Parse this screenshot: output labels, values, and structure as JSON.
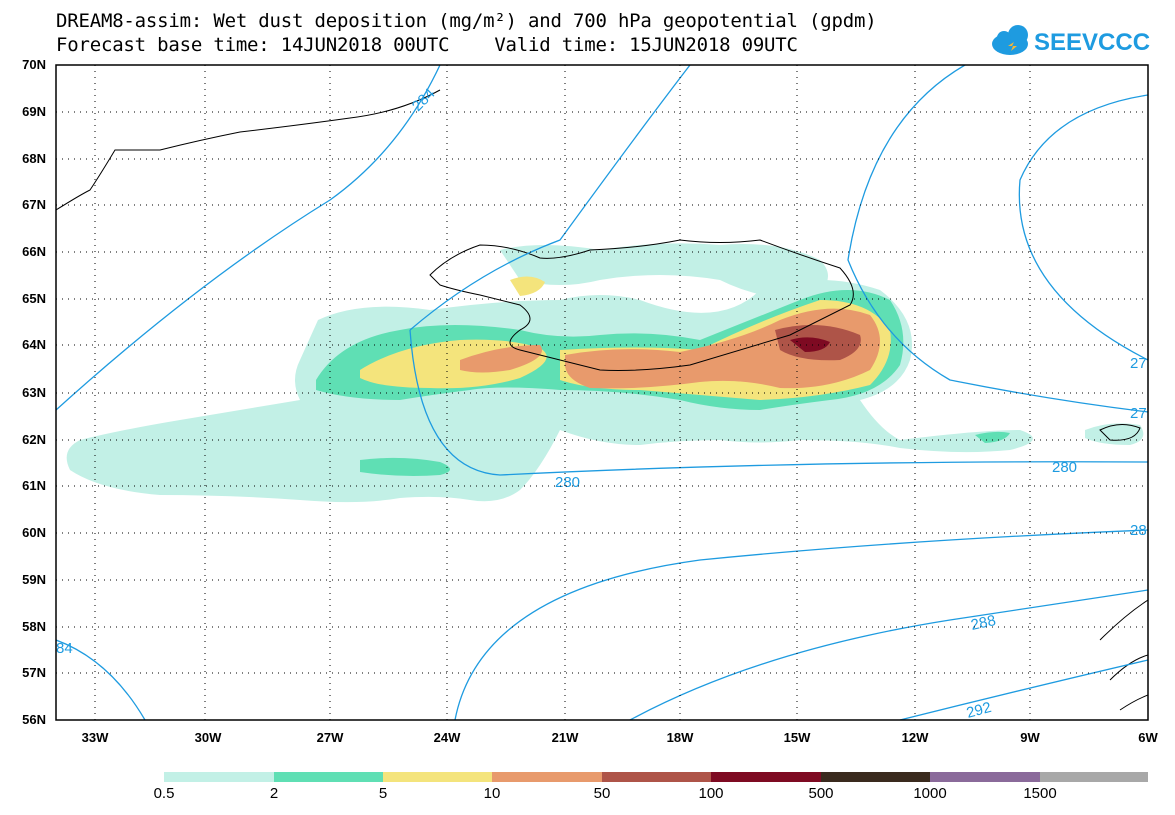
{
  "title_line_1": "DREAM8-assim: Wet dust deposition (mg/m²) and 700 hPa geopotential (gpdm)",
  "title_line_2": "Forecast base time: 14JUN2018 00UTC    Valid time: 15JUN2018 09UTC",
  "logo_text": "SEEVCCC",
  "latitudes": [
    "70N",
    "69N",
    "68N",
    "67N",
    "66N",
    "65N",
    "64N",
    "63N",
    "62N",
    "61N",
    "60N",
    "59N",
    "58N",
    "57N",
    "56N"
  ],
  "longitudes": [
    "33W",
    "30W",
    "27W",
    "24W",
    "21W",
    "18W",
    "15W",
    "12W",
    "9W",
    "6W"
  ],
  "contour_labels": [
    "284",
    "280",
    "280",
    "288",
    "292",
    "84",
    "27",
    "27",
    "28"
  ],
  "legend": {
    "labels": [
      "0.5",
      "2",
      "5",
      "10",
      "50",
      "100",
      "500",
      "1000",
      "1500"
    ],
    "colors": [
      "#c2f0e6",
      "#5fdfb4",
      "#f4e47c",
      "#e89a6c",
      "#ae5448",
      "#7e0a22",
      "#3a2a1e",
      "#8a6a9a",
      "#a8a8a8"
    ]
  }
}
